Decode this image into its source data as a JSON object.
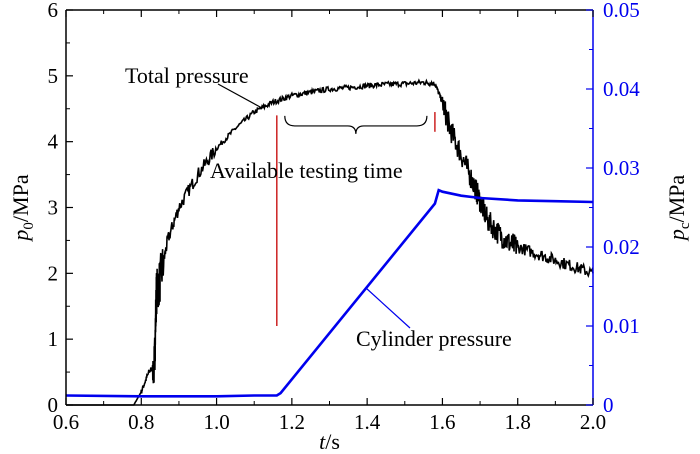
{
  "chart_data": {
    "type": "line",
    "title": "",
    "xlabel": {
      "var": "t",
      "unit": "/s"
    },
    "ylabel_left": {
      "var": "p",
      "sub": "0",
      "unit": "/MPa"
    },
    "ylabel_right": {
      "var": "p",
      "sub": "c",
      "unit": "/MPa"
    },
    "xlim": [
      0.6,
      2.0
    ],
    "ylim_left": [
      0,
      6
    ],
    "ylim_right": [
      0,
      0.05
    ],
    "x_ticks": [
      "0.6",
      "0.8",
      "1.0",
      "1.2",
      "1.4",
      "1.6",
      "1.8",
      "2.0"
    ],
    "y_ticks_left": [
      "0",
      "1",
      "2",
      "3",
      "4",
      "5",
      "6"
    ],
    "y_ticks_right": [
      "0",
      "0.01",
      "0.02",
      "0.03",
      "0.04",
      "0.05"
    ],
    "colors": {
      "total": "#000000",
      "cylinder": "#0000ee",
      "marker": "#cc2222",
      "axis_right": "#0000ee"
    },
    "series": [
      {
        "name": "Total pressure",
        "axis": "left",
        "x": [
          0.6,
          0.78,
          0.8,
          0.82,
          0.835,
          0.84,
          0.85,
          0.87,
          0.9,
          0.95,
          1.0,
          1.05,
          1.1,
          1.15,
          1.2,
          1.25,
          1.3,
          1.35,
          1.4,
          1.45,
          1.5,
          1.55,
          1.58,
          1.6,
          1.62,
          1.65,
          1.68,
          1.7,
          1.72,
          1.75,
          1.78,
          1.8,
          1.85,
          1.9,
          1.95,
          2.0
        ],
        "values": [
          0,
          0,
          0.2,
          0.5,
          0.6,
          1.7,
          1.9,
          2.5,
          3.0,
          3.5,
          3.9,
          4.2,
          4.45,
          4.6,
          4.7,
          4.75,
          4.8,
          4.82,
          4.85,
          4.87,
          4.88,
          4.9,
          4.88,
          4.6,
          4.2,
          3.8,
          3.4,
          3.1,
          2.8,
          2.6,
          2.45,
          2.4,
          2.3,
          2.2,
          2.1,
          2.0
        ]
      },
      {
        "name": "Cylinder pressure",
        "axis": "right",
        "x": [
          0.6,
          0.8,
          1.0,
          1.1,
          1.16,
          1.17,
          1.58,
          1.59,
          1.6,
          1.65,
          1.7,
          1.8,
          1.9,
          2.0
        ],
        "values": [
          0.0012,
          0.0011,
          0.0011,
          0.0012,
          0.0012,
          0.0015,
          0.0255,
          0.0272,
          0.027,
          0.0265,
          0.0262,
          0.0259,
          0.0258,
          0.0257
        ]
      }
    ],
    "annotations": {
      "total_label": "Total pressure",
      "cylinder_label": "Cylinder pressure",
      "testing_label": "Available testing time",
      "testing_window": [
        1.16,
        1.58
      ]
    }
  }
}
